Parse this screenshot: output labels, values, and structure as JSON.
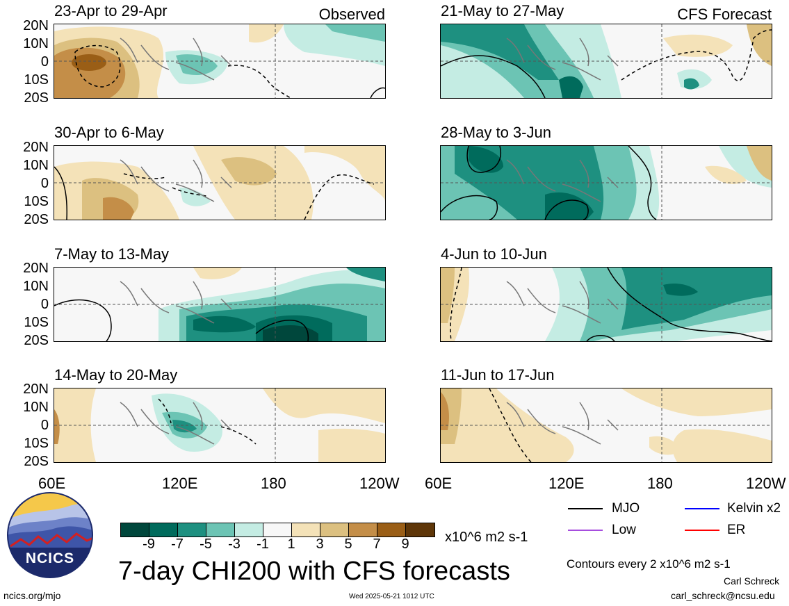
{
  "panels": {
    "observed_label": "Observed",
    "forecast_label": "CFS Forecast",
    "left": [
      {
        "title": "23-Apr to 29-Apr"
      },
      {
        "title": "30-Apr to 6-May"
      },
      {
        "title": "7-May to 13-May"
      },
      {
        "title": "14-May to 20-May"
      }
    ],
    "right": [
      {
        "title": "21-May to 27-May"
      },
      {
        "title": "28-May to 3-Jun"
      },
      {
        "title": "4-Jun to 10-Jun"
      },
      {
        "title": "11-Jun to 17-Jun"
      }
    ]
  },
  "axes": {
    "lat_labels": [
      "20N",
      "10N",
      "0",
      "10S",
      "20S"
    ],
    "lon_labels": [
      "60E",
      "120E",
      "180",
      "120W"
    ]
  },
  "colorbar": {
    "colors": [
      "#00473c",
      "#006b5c",
      "#1e9080",
      "#6cc4b4",
      "#c4ece3",
      "#f7f7f7",
      "#f4e2b8",
      "#dcc080",
      "#c48e48",
      "#9a5e16",
      "#5e3608"
    ],
    "ticks": [
      "-9",
      "-7",
      "-5",
      "-3",
      "-1",
      "1",
      "3",
      "5",
      "7",
      "9"
    ],
    "units": "x10^6 m2 s-1"
  },
  "legend": {
    "items": [
      {
        "label": "MJO",
        "color": "#000000"
      },
      {
        "label": "Kelvin x2",
        "color": "#0000ff"
      },
      {
        "label": "Low",
        "color": "#a64dde"
      },
      {
        "label": "ER",
        "color": "#ff0000"
      }
    ],
    "contours_note": "Contours every 2 x10^6 m2 s-1"
  },
  "footer": {
    "title": "7-day CHI200 with CFS forecasts",
    "logo_text": "NCICS",
    "site": "ncics.org/mjo",
    "timestamp": "Wed 2025-05-21 1012 UTC",
    "author": "Carl Schreck",
    "email": "carl_schreck@ncsu.edu"
  }
}
